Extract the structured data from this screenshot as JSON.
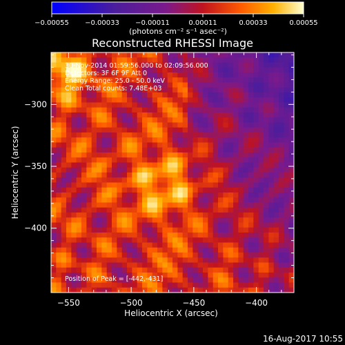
{
  "chart_data": {
    "type": "heatmap",
    "title": "Reconstructed RHESSI Image",
    "xlabel": "Heliocentric X (arcsec)",
    "ylabel": "Heliocentric Y (arcsec)",
    "xlim": [
      -564,
      -370
    ],
    "ylim": [
      -452,
      -258
    ],
    "x_ticks": [
      -550,
      -500,
      -450,
      -400
    ],
    "y_ticks": [
      -300,
      -350,
      -400
    ],
    "x_tick_labels": [
      "−550",
      "−500",
      "−450",
      "−400"
    ],
    "y_tick_labels": [
      "−300",
      "−350",
      "−400"
    ],
    "colorbar": {
      "min": -0.00055,
      "max": 0.00055,
      "ticks": [
        -0.00055,
        -0.00033,
        -0.00011,
        0.00011,
        0.00033,
        0.00055
      ],
      "tick_labels": [
        "−0.00055",
        "−0.00033",
        "−0.00011",
        "0.00011",
        "0.00033",
        "0.00055"
      ],
      "unit_label": "(photons cm⁻² s⁻¹ asec⁻²)"
    },
    "annotations": [
      "30-Nov-2014 01:59:56.000 to 02:09:56.000",
      "Detectors: 3F 6F 9F  Att 0",
      "Energy Range: 25.0 - 50.0 keV",
      "Clean     Total counts: 7.48E+03"
    ],
    "peak_label": "Position of Peak = [-442,-431]",
    "peak_position": [
      -442,
      -431
    ],
    "grid": false,
    "colormap": [
      "#0000ff",
      "#4b1d9c",
      "#7a1a8c",
      "#c0131f",
      "#ff5a00",
      "#ffb000",
      "#ffffd0"
    ]
  },
  "footer": {
    "date": "16-Aug-2017 10:55"
  }
}
